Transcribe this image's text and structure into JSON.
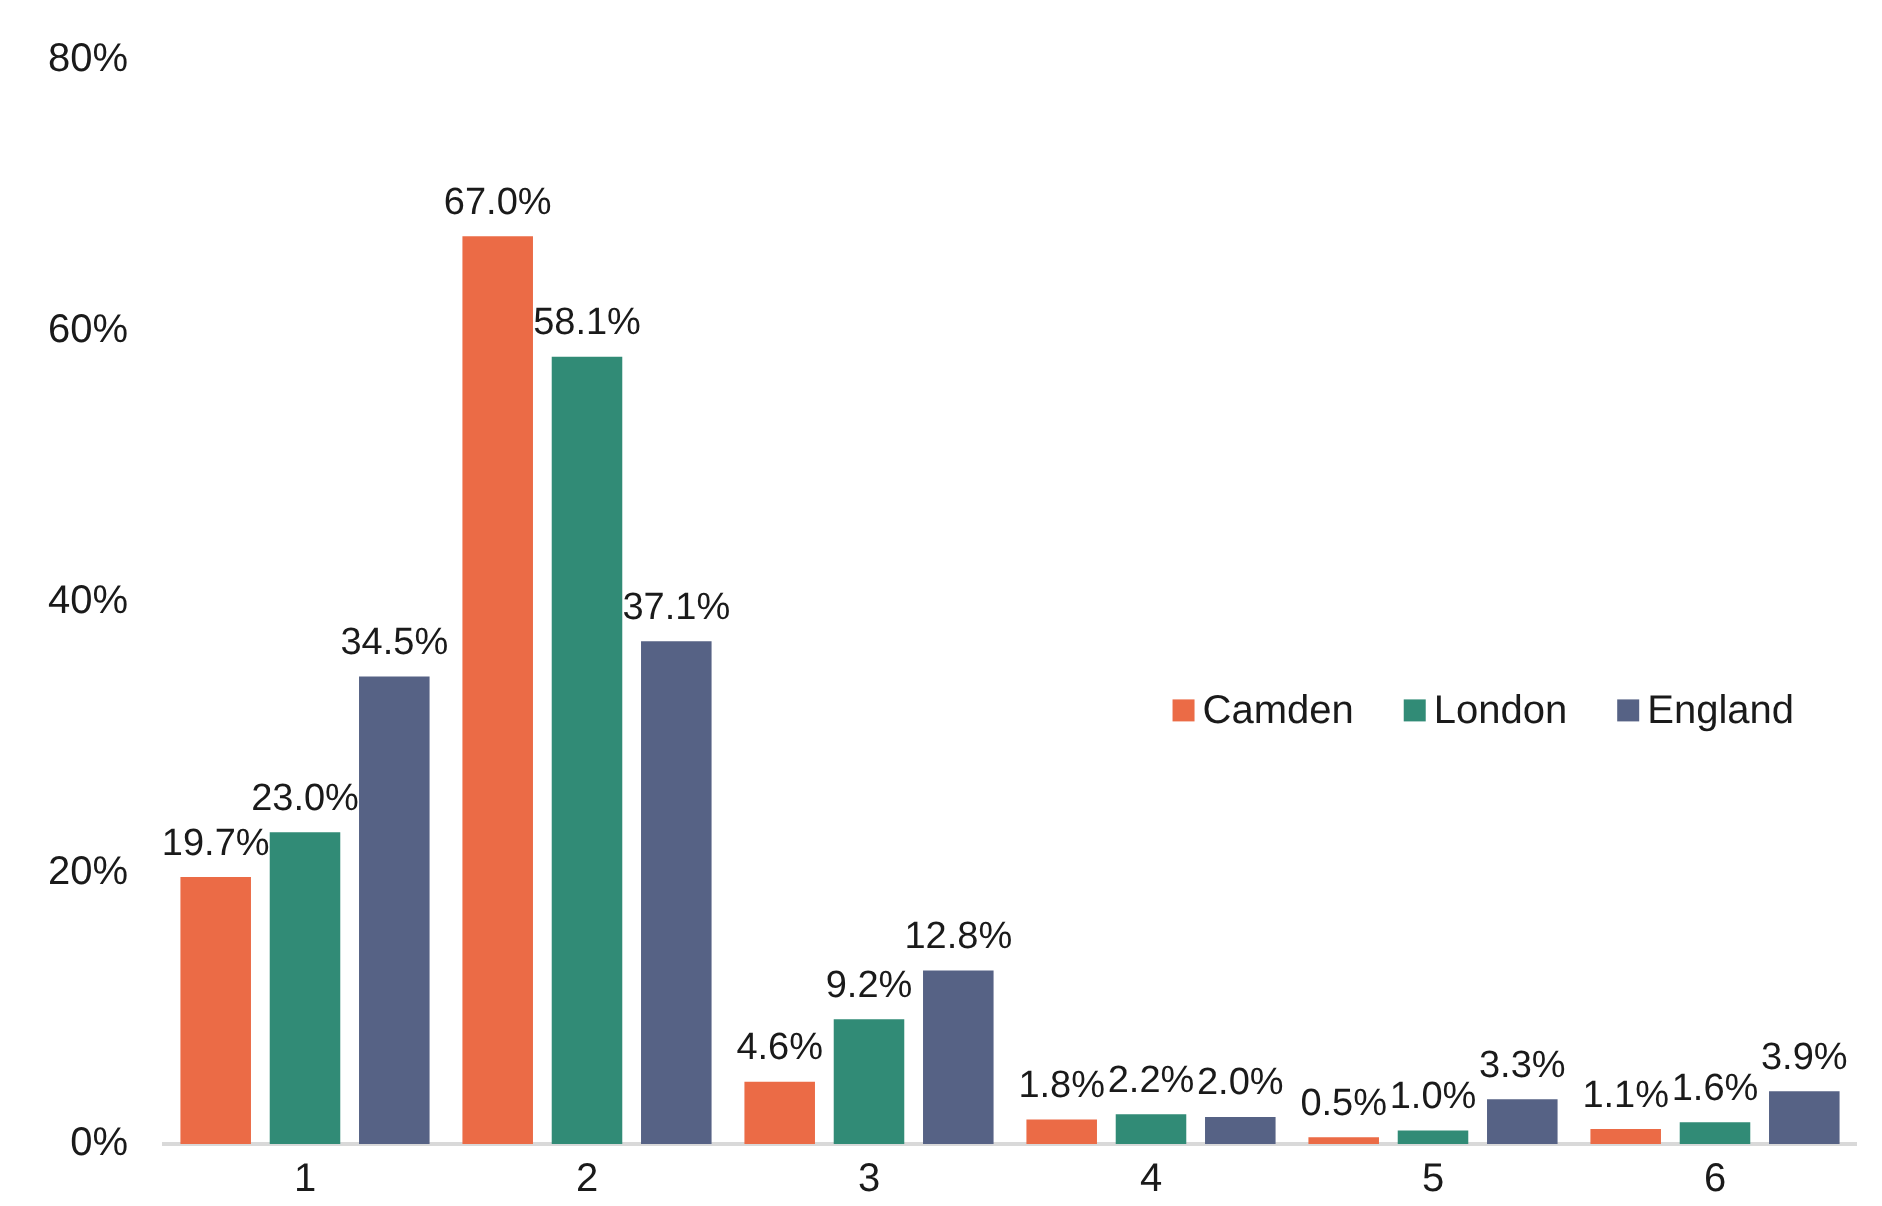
{
  "chart_data": {
    "type": "bar",
    "categories": [
      "1",
      "2",
      "3",
      "4",
      "5",
      "6"
    ],
    "series": [
      {
        "name": "Camden",
        "color": "#eb6b46",
        "values": [
          19.7,
          67.0,
          4.6,
          1.8,
          0.5,
          1.1
        ],
        "value_labels": [
          "19.7%",
          "67.0%",
          "4.6%",
          "1.8%",
          "0.5%",
          "1.1%"
        ]
      },
      {
        "name": "London",
        "color": "#318b76",
        "values": [
          23.0,
          58.1,
          9.2,
          2.2,
          1.0,
          1.6
        ],
        "value_labels": [
          "23.0%",
          "58.1%",
          "9.2%",
          "2.2%",
          "1.0%",
          "1.6%"
        ]
      },
      {
        "name": "England",
        "color": "#566285",
        "values": [
          34.5,
          37.1,
          12.8,
          2.0,
          3.3,
          3.9
        ],
        "value_labels": [
          "34.5%",
          "37.1%",
          "12.8%",
          "2.0%",
          "3.3%",
          "3.9%"
        ]
      }
    ],
    "ylim": [
      0,
      80
    ],
    "yticks": [
      {
        "value": 0,
        "label": "0%"
      },
      {
        "value": 20,
        "label": "20%"
      },
      {
        "value": 40,
        "label": "40%"
      },
      {
        "value": 60,
        "label": "60%"
      },
      {
        "value": 80,
        "label": "80%"
      }
    ],
    "legend": "right"
  }
}
